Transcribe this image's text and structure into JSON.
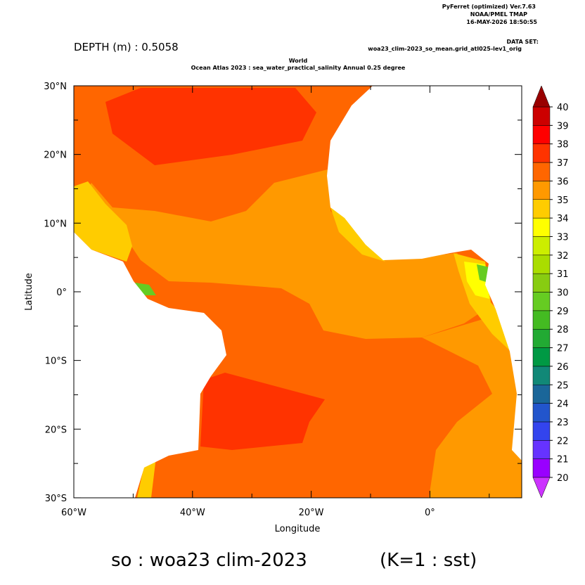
{
  "header": {
    "software": "PyFerret (optimized) Ver.7.63",
    "org": "NOAA/PMEL TMAP",
    "timestamp": "16-MAY-2026 18:50:55",
    "dataset_label": "DATA SET:",
    "dataset": "woa23_clim-2023_so_mean.grid_atl025-lev1_orig",
    "depth": "DEPTH (m) : 0.5058",
    "title_line1": "World",
    "title_line2": "Ocean Atlas 2023 : sea_water_practical_salinity Annual  0.25 degree"
  },
  "map": {
    "x_axis_label": "Longitude",
    "y_axis_label": "Latitude",
    "xticks": [
      "60°W",
      "40°W",
      "20°W",
      "0°"
    ],
    "yticks": [
      "30°N",
      "20°N",
      "10°N",
      "0°",
      "10°S",
      "20°S",
      "30°S"
    ]
  },
  "colorbar": {
    "levels": [
      20,
      21,
      22,
      23,
      24,
      25,
      26,
      27,
      28,
      29,
      30,
      31,
      32,
      33,
      34,
      35,
      36,
      37,
      38,
      39,
      40
    ],
    "colors": [
      "#9900ff",
      "#6633ff",
      "#3344ee",
      "#2255cc",
      "#1a6699",
      "#118877",
      "#009944",
      "#22aa33",
      "#44bb22",
      "#66cc22",
      "#88cc11",
      "#aadd00",
      "#ccee00",
      "#ffff00",
      "#ffcc00",
      "#ff9900",
      "#ff6600",
      "#ff3300",
      "#ff0000",
      "#cc0000"
    ],
    "over_color": "#990000",
    "under_color": "#cc33ff"
  },
  "footer": {
    "variable": "so : woa23 clim-2023",
    "k": "(K=1 : sst)"
  }
}
